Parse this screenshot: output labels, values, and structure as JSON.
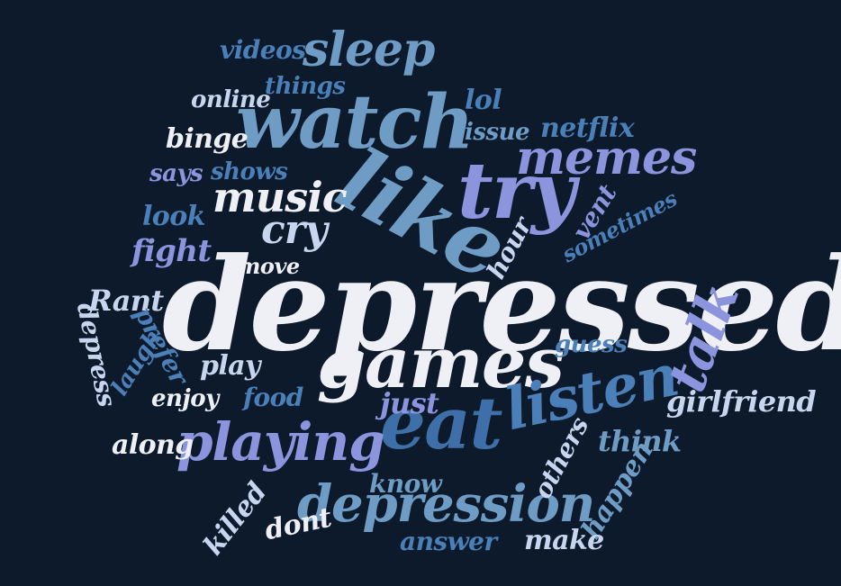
{
  "colors": {
    "background": "#0c1a2b",
    "white": "#eef0f6",
    "light_blue": "#c7d6ee",
    "steel_blue": "#6f9cc4",
    "mid_blue": "#4b7fb7",
    "dark_blue": "#3f6fa8",
    "periwinkle": "#8b94dc",
    "lavender": "#9aa5e6"
  },
  "words": [
    {
      "text": "depressed",
      "color": "white"
    },
    {
      "text": "games",
      "color": "white"
    },
    {
      "text": "watch",
      "color": "steel_blue"
    },
    {
      "text": "like",
      "color": "steel_blue"
    },
    {
      "text": "try",
      "color": "periwinkle"
    },
    {
      "text": "eat",
      "color": "dark_blue"
    },
    {
      "text": "listen",
      "color": "mid_blue"
    },
    {
      "text": "playing",
      "color": "periwinkle"
    },
    {
      "text": "depression",
      "color": "steel_blue"
    },
    {
      "text": "talk",
      "color": "periwinkle"
    },
    {
      "text": "memes",
      "color": "periwinkle"
    },
    {
      "text": "sleep",
      "color": "steel_blue"
    },
    {
      "text": "music",
      "color": "white"
    },
    {
      "text": "cry",
      "color": "light_blue"
    },
    {
      "text": "videos",
      "color": "mid_blue"
    },
    {
      "text": "things",
      "color": "mid_blue"
    },
    {
      "text": "online",
      "color": "light_blue"
    },
    {
      "text": "lol",
      "color": "mid_blue"
    },
    {
      "text": "issue",
      "color": "steel_blue"
    },
    {
      "text": "netflix",
      "color": "mid_blue"
    },
    {
      "text": "binge",
      "color": "white"
    },
    {
      "text": "says",
      "color": "periwinkle"
    },
    {
      "text": "shows",
      "color": "mid_blue"
    },
    {
      "text": "look",
      "color": "mid_blue"
    },
    {
      "text": "fight",
      "color": "periwinkle"
    },
    {
      "text": "move",
      "color": "white"
    },
    {
      "text": "hour",
      "color": "light_blue"
    },
    {
      "text": "vent",
      "color": "periwinkle"
    },
    {
      "text": "sometimes",
      "color": "mid_blue"
    },
    {
      "text": "Rant",
      "color": "light_blue"
    },
    {
      "text": "depress",
      "color": "light_blue"
    },
    {
      "text": "prefer",
      "color": "mid_blue"
    },
    {
      "text": "laugh",
      "color": "mid_blue"
    },
    {
      "text": "play",
      "color": "light_blue"
    },
    {
      "text": "guess",
      "color": "mid_blue"
    },
    {
      "text": "enjoy",
      "color": "white"
    },
    {
      "text": "food",
      "color": "mid_blue"
    },
    {
      "text": "just",
      "color": "periwinkle"
    },
    {
      "text": "girlfriend",
      "color": "light_blue"
    },
    {
      "text": "along",
      "color": "white"
    },
    {
      "text": "think",
      "color": "steel_blue"
    },
    {
      "text": "others",
      "color": "light_blue"
    },
    {
      "text": "know",
      "color": "steel_blue"
    },
    {
      "text": "happen",
      "color": "steel_blue"
    },
    {
      "text": "killed",
      "color": "light_blue"
    },
    {
      "text": "dont",
      "color": "white"
    },
    {
      "text": "answer",
      "color": "mid_blue"
    },
    {
      "text": "make",
      "color": "light_blue"
    }
  ]
}
